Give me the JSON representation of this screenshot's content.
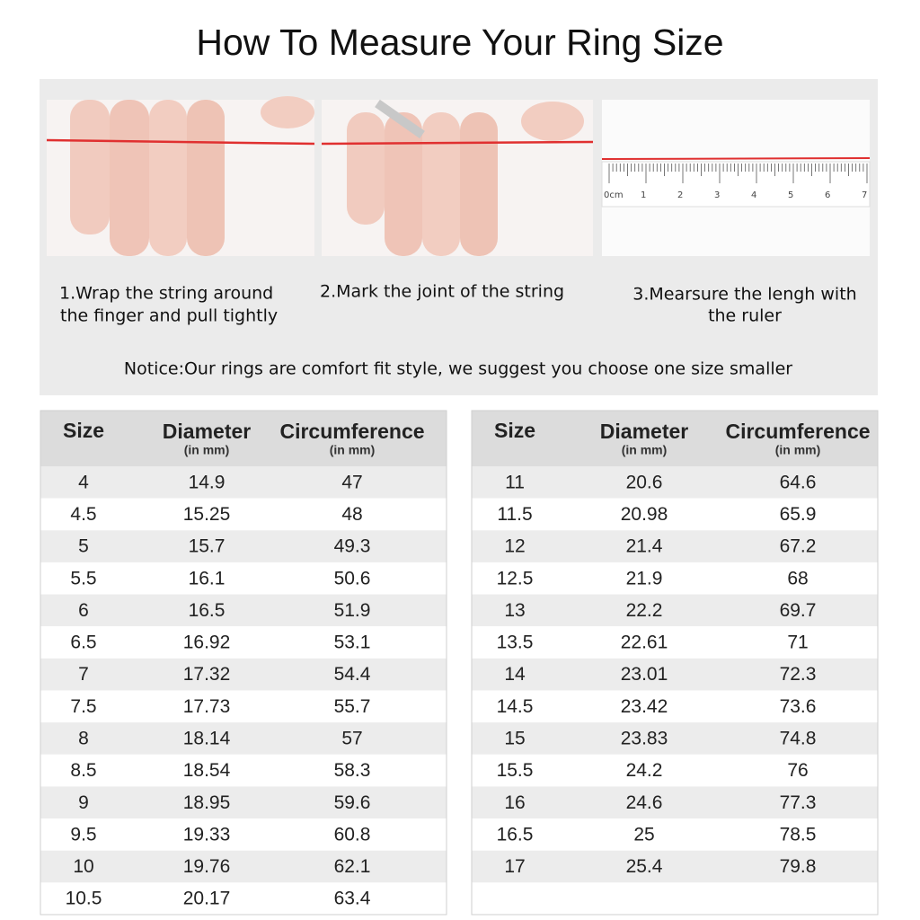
{
  "header": {
    "title": "How To Measure Your Ring Size"
  },
  "steps": [
    {
      "lines": [
        "1.Wrap the string around",
        "the finger and pull tightly"
      ]
    },
    {
      "lines": [
        "2.Mark the joint of the string"
      ]
    },
    {
      "lines": [
        "3.Mearsure the lengh with",
        "the ruler"
      ]
    }
  ],
  "ruler": {
    "labels": [
      "0cm",
      "1",
      "2",
      "3",
      "4",
      "5",
      "6",
      "7"
    ]
  },
  "notice": "Notice:Our rings are comfort fit style, we suggest you choose one size smaller",
  "tables": [
    {
      "columns": [
        {
          "label": "Size"
        },
        {
          "label": "Diameter",
          "unit": "(in mm)"
        },
        {
          "label": "Circumference",
          "unit": "(in mm)"
        }
      ],
      "rows": [
        [
          4,
          14.9,
          47
        ],
        [
          4.5,
          15.25,
          48
        ],
        [
          5,
          15.7,
          49.3
        ],
        [
          5.5,
          16.1,
          50.6
        ],
        [
          6,
          16.5,
          51.9
        ],
        [
          6.5,
          16.92,
          53.1
        ],
        [
          7,
          17.32,
          54.4
        ],
        [
          7.5,
          17.73,
          55.7
        ],
        [
          8,
          18.14,
          57
        ],
        [
          8.5,
          18.54,
          58.3
        ],
        [
          9,
          18.95,
          59.6
        ],
        [
          9.5,
          19.33,
          60.8
        ],
        [
          10,
          19.76,
          62.1
        ],
        [
          10.5,
          20.17,
          63.4
        ]
      ]
    },
    {
      "columns": [
        {
          "label": "Size"
        },
        {
          "label": "Diameter",
          "unit": "(in mm)"
        },
        {
          "label": "Circumference",
          "unit": "(in mm)"
        }
      ],
      "rows": [
        [
          11,
          20.6,
          64.6
        ],
        [
          11.5,
          20.98,
          65.9
        ],
        [
          12,
          21.4,
          67.2
        ],
        [
          12.5,
          21.9,
          68
        ],
        [
          13,
          22.2,
          69.7
        ],
        [
          13.5,
          22.61,
          71
        ],
        [
          14,
          23.01,
          72.3
        ],
        [
          14.5,
          23.42,
          73.6
        ],
        [
          15,
          23.83,
          74.8
        ],
        [
          15.5,
          24.2,
          76
        ],
        [
          16,
          24.6,
          77.3
        ],
        [
          16.5,
          25,
          78.5
        ],
        [
          17,
          25.4,
          79.8
        ]
      ]
    }
  ]
}
